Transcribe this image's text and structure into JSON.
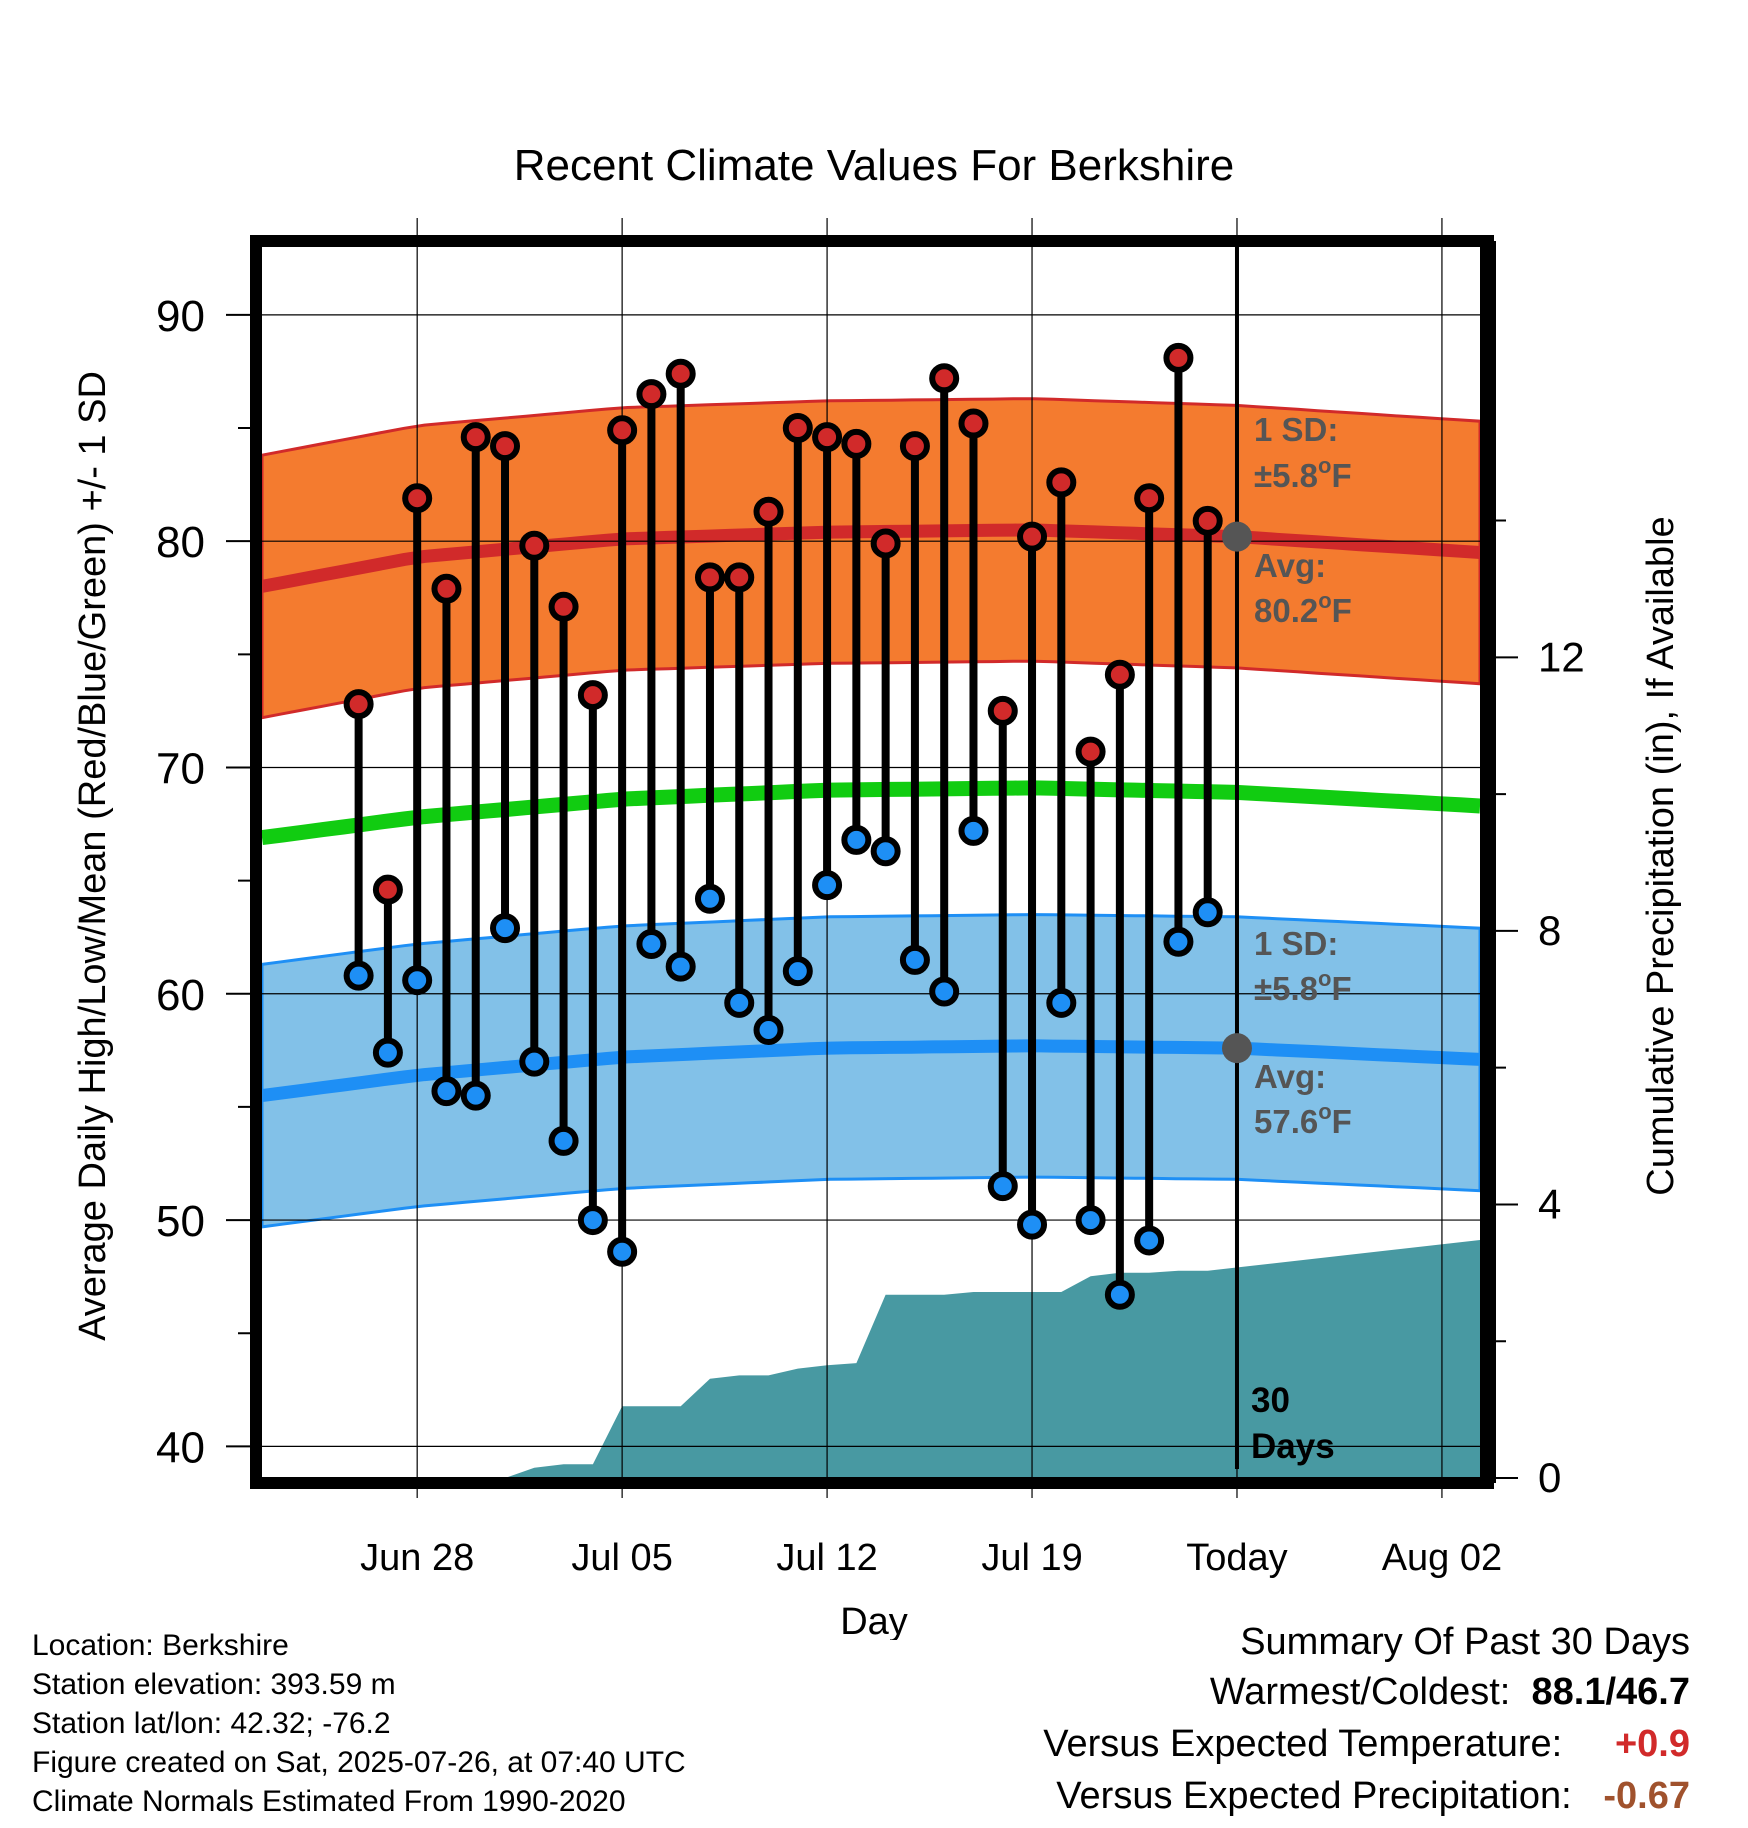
{
  "chart_data": {
    "type": "line",
    "title": "Recent Climate Values For Berkshire",
    "xlabel": "Day",
    "ylabel": "Average Daily High/Low/Mean (Red/Blue/Green) +/- 1 SD",
    "y2label": "Cumulative Precipitation (in), If Available",
    "ylim": [
      39,
      93
    ],
    "y2lim": [
      0,
      18
    ],
    "xlim": [
      -3.3,
      38.3
    ],
    "yticks": [
      "40",
      "50",
      "60",
      "70",
      "80",
      "90"
    ],
    "y2ticks": [
      "0",
      "4",
      "8",
      "12"
    ],
    "xticks": [
      {
        "x": 2,
        "label": "Jun 28"
      },
      {
        "x": 9,
        "label": "Jul 05"
      },
      {
        "x": 16,
        "label": "Jul 12"
      },
      {
        "x": 23,
        "label": "Jul 19"
      },
      {
        "x": 30,
        "label": "Today"
      },
      {
        "x": 37,
        "label": "Aug 02"
      }
    ],
    "grid": true,
    "day_index_note_x_values": "x = days after Jun 26",
    "highs": [
      72.8,
      64.6,
      81.9,
      77.9,
      84.6,
      84.2,
      79.8,
      77.1,
      73.2,
      84.9,
      86.5,
      87.4,
      78.4,
      78.4,
      81.3,
      85.0,
      84.6,
      84.3,
      79.9,
      84.2,
      87.2,
      85.2,
      72.5,
      80.2,
      82.6,
      70.7,
      74.1,
      81.9,
      88.1,
      80.9
    ],
    "lows": [
      60.8,
      57.4,
      60.6,
      55.7,
      55.5,
      62.9,
      57.0,
      53.5,
      50.0,
      48.6,
      62.2,
      61.2,
      64.2,
      59.6,
      58.4,
      61.0,
      64.8,
      66.8,
      66.3,
      61.5,
      60.1,
      67.2,
      51.5,
      49.8,
      59.6,
      50.0,
      46.7,
      49.1,
      62.3,
      63.6
    ],
    "normal_high": {
      "x": [
        -3.3,
        2,
        9,
        16,
        23,
        30,
        38.3
      ],
      "avg": [
        78.0,
        79.3,
        80.1,
        80.4,
        80.5,
        80.2,
        79.5
      ],
      "sd": 5.8
    },
    "normal_low": {
      "x": [
        -3.3,
        2,
        9,
        16,
        23,
        30,
        38.3
      ],
      "avg": [
        55.5,
        56.4,
        57.2,
        57.6,
        57.7,
        57.6,
        57.1
      ],
      "sd": 5.8
    },
    "normal_mean": {
      "x": [
        -3.3,
        2,
        9,
        16,
        23,
        30,
        38.3
      ],
      "avg": [
        66.9,
        67.8,
        68.6,
        69.0,
        69.1,
        68.9,
        68.3
      ]
    },
    "precip_cumulative": {
      "x": [
        -3.3,
        5,
        6,
        7,
        8,
        9,
        10,
        11,
        12,
        13,
        14,
        15,
        16,
        17,
        18,
        19,
        20,
        21,
        22,
        23,
        24,
        25,
        26,
        27,
        28,
        29,
        38.3
      ],
      "values": [
        0,
        0,
        0.15,
        0.2,
        0.2,
        1.05,
        1.05,
        1.05,
        1.45,
        1.5,
        1.5,
        1.6,
        1.65,
        1.68,
        2.68,
        2.68,
        2.68,
        2.72,
        2.72,
        2.72,
        2.72,
        2.95,
        3.0,
        3.0,
        3.03,
        3.03,
        3.48
      ]
    },
    "annotations": {
      "high_sd_label": "1 SD:",
      "high_sd_value": "±5.8",
      "high_avg_label": "Avg:",
      "high_avg_value": "80.2",
      "low_sd_label": "1 SD:",
      "low_sd_value": "±5.8",
      "low_avg_label": "Avg:",
      "low_avg_value": "57.6",
      "unit_sup": "o",
      "unit": "F",
      "period_num": "30",
      "period_word": "Days"
    },
    "colors": {
      "high_band": "#f47b2f",
      "high_line": "#d12a2a",
      "low_band": "#82c1e8",
      "low_line": "#1e8ff5",
      "mean_line": "#11cc11",
      "precip": "#4899a2",
      "label_gray": "#555555"
    }
  },
  "footer": {
    "location": "Location: Berkshire",
    "elevation": "Station elevation: 393.59 m",
    "latlon": "Station lat/lon: 42.32; -76.2",
    "created": "Figure created on Sat, 2025-07-26, at 07:40 UTC",
    "normals": "Climate Normals Estimated From 1990-2020"
  },
  "summary": {
    "title": "Summary Of Past 30 Days",
    "warm_cold_label": "Warmest/Coldest:",
    "warm_value": "88.1",
    "sep": "/",
    "cold_value": "46.7",
    "temp_label": "Versus Expected Temperature:",
    "temp_value": "+0.9",
    "temp_color": "#d12a2a",
    "precip_label": "Versus Expected Precipitation:",
    "precip_value": "-0.67",
    "precip_color": "#a0522d"
  }
}
